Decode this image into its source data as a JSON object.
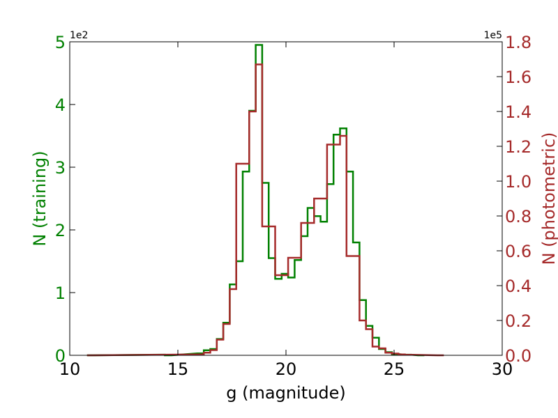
{
  "chart_data": {
    "type": "line",
    "style": "step-histogram",
    "title": "",
    "xlabel": "g (magnitude)",
    "xlim": [
      10,
      30
    ],
    "xticks": [
      "10",
      "15",
      "20",
      "25",
      "30"
    ],
    "bin_width": 0.3,
    "grid": false,
    "legend": "none",
    "left_axis": {
      "label": "N (training)",
      "color": "#008000",
      "ylim": [
        0,
        5
      ],
      "ticks": [
        "0",
        "1",
        "2",
        "3",
        "4",
        "5"
      ],
      "exponent_label": "1e2"
    },
    "right_axis": {
      "label": "N (photometric)",
      "color": "#a52a2a",
      "ylim": [
        0,
        1.8
      ],
      "ticks": [
        "0.0",
        "0.2",
        "0.4",
        "0.6",
        "0.8",
        "1.0",
        "1.2",
        "1.4",
        "1.6",
        "1.8"
      ],
      "exponent_label": "1e5"
    },
    "series": [
      {
        "axis": "left",
        "color": "#008000",
        "x": [
          10.8,
          14.1,
          14.4,
          15.9,
          16.2,
          16.5,
          16.8,
          17.1,
          17.4,
          17.7,
          18.0,
          18.3,
          18.6,
          18.9,
          19.2,
          19.5,
          19.8,
          20.1,
          20.4,
          20.7,
          21.0,
          21.3,
          21.6,
          21.9,
          22.2,
          22.5,
          22.8,
          23.1,
          23.4,
          23.7,
          24.0,
          24.3,
          24.6,
          24.9,
          25.5,
          26.1
        ],
        "values": [
          0,
          0.01,
          0,
          0.03,
          0.08,
          0.1,
          0.26,
          0.52,
          1.13,
          1.5,
          2.93,
          3.9,
          4.95,
          2.75,
          1.55,
          1.22,
          1.3,
          1.24,
          1.52,
          1.9,
          2.35,
          2.22,
          2.13,
          2.73,
          3.52,
          3.62,
          2.93,
          1.8,
          0.88,
          0.47,
          0.28,
          0.1,
          0.05,
          0.02,
          0.01,
          0
        ]
      },
      {
        "axis": "right",
        "color": "#a52a2a",
        "x": [
          10.8,
          15.9,
          16.2,
          16.5,
          16.8,
          17.1,
          17.4,
          17.7,
          18.0,
          18.3,
          18.6,
          18.9,
          19.2,
          19.5,
          19.8,
          20.1,
          20.4,
          20.7,
          21.0,
          21.3,
          21.6,
          21.9,
          22.2,
          22.5,
          22.8,
          23.1,
          23.4,
          23.7,
          24.0,
          24.3,
          24.6,
          24.9,
          25.2,
          25.5,
          27.0
        ],
        "values": [
          0,
          0.005,
          0.015,
          0.03,
          0.09,
          0.18,
          0.38,
          1.1,
          1.1,
          1.4,
          1.67,
          0.74,
          0.74,
          0.46,
          0.46,
          0.56,
          0.56,
          0.76,
          0.76,
          0.9,
          0.9,
          1.21,
          1.21,
          1.26,
          0.57,
          0.57,
          0.2,
          0.15,
          0.05,
          0.04,
          0.015,
          0.01,
          0.005,
          0.003,
          0
        ]
      }
    ]
  }
}
